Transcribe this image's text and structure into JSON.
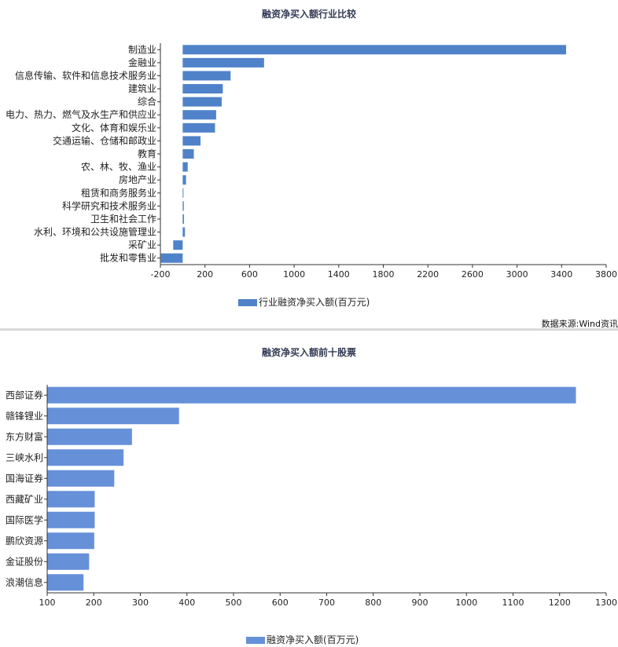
{
  "chart_data": [
    {
      "type": "bar",
      "orientation": "horizontal",
      "title": "融资净买入额行业比较",
      "categories": [
        "制造业",
        "金融业",
        "信息传输、软件和信息技术服务业",
        "建筑业",
        "综合",
        "电力、热力、燃气及水生产和供应业",
        "文化、体育和娱乐业",
        "交通运输、仓储和邮政业",
        "教育",
        "农、林、牧、渔业",
        "房地产业",
        "租赁和商务服务业",
        "科学研究和技术服务业",
        "卫生和社会工作",
        "水利、环境和公共设施管理业",
        "采矿业",
        "批发和零售业"
      ],
      "series": [
        {
          "name": "行业融资净买入额(百万元)",
          "values": [
            3440,
            730,
            430,
            360,
            350,
            300,
            290,
            160,
            100,
            45,
            30,
            5,
            10,
            12,
            20,
            -85,
            -195
          ]
        }
      ],
      "xlim": [
        -200,
        3800
      ],
      "xticks": [
        -200,
        200,
        600,
        1000,
        1400,
        1800,
        2200,
        2600,
        3000,
        3400,
        3800
      ],
      "bar_color": "#4f82c9",
      "legend_position": "bottom",
      "grid": false
    },
    {
      "type": "bar",
      "orientation": "horizontal",
      "title": "融资净买入额前十股票",
      "categories": [
        "西部证券",
        "赣锋锂业",
        "东方财富",
        "三峡水利",
        "国海证券",
        "西藏矿业",
        "国际医学",
        "鹏欣资源",
        "金证股份",
        "浪潮信息"
      ],
      "series": [
        {
          "name": "融资净买入额(百万元)",
          "values": [
            1235,
            383,
            282,
            264,
            244,
            202,
            202,
            201,
            190,
            178
          ]
        }
      ],
      "xlim": [
        100,
        1300
      ],
      "xticks": [
        100,
        200,
        300,
        400,
        500,
        600,
        700,
        800,
        900,
        1000,
        1100,
        1200,
        1300
      ],
      "bar_color": "#6690d8",
      "legend_position": "bottom",
      "grid": false
    }
  ],
  "source_note": "数据来源:Wind资讯"
}
